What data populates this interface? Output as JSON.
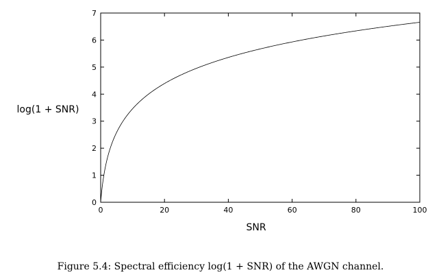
{
  "chart_data": {
    "type": "line",
    "title": "",
    "xlabel": "SNR",
    "ylabel": "log(1 + SNR)",
    "xlim": [
      0,
      100
    ],
    "ylim": [
      0,
      7
    ],
    "x_ticks": [
      "0",
      "20",
      "40",
      "60",
      "80",
      "100"
    ],
    "y_ticks": [
      "0",
      "1",
      "2",
      "3",
      "4",
      "5",
      "6",
      "7"
    ],
    "grid": false,
    "legend": "none",
    "series": [
      {
        "function": "log2(1 + SNR)",
        "x": [
          0,
          1,
          2,
          3,
          5,
          7,
          10,
          15,
          20,
          25,
          30,
          40,
          50,
          60,
          70,
          80,
          90,
          100
        ],
        "y": [
          0,
          1.0,
          1.58,
          2.0,
          2.58,
          3.0,
          3.46,
          4.0,
          4.39,
          4.7,
          4.95,
          5.36,
          5.67,
          5.93,
          6.15,
          6.34,
          6.51,
          6.66
        ],
        "color": "#000000"
      }
    ]
  },
  "caption": "Figure 5.4: Spectral efficiency log(1 + SNR) of the AWGN channel."
}
